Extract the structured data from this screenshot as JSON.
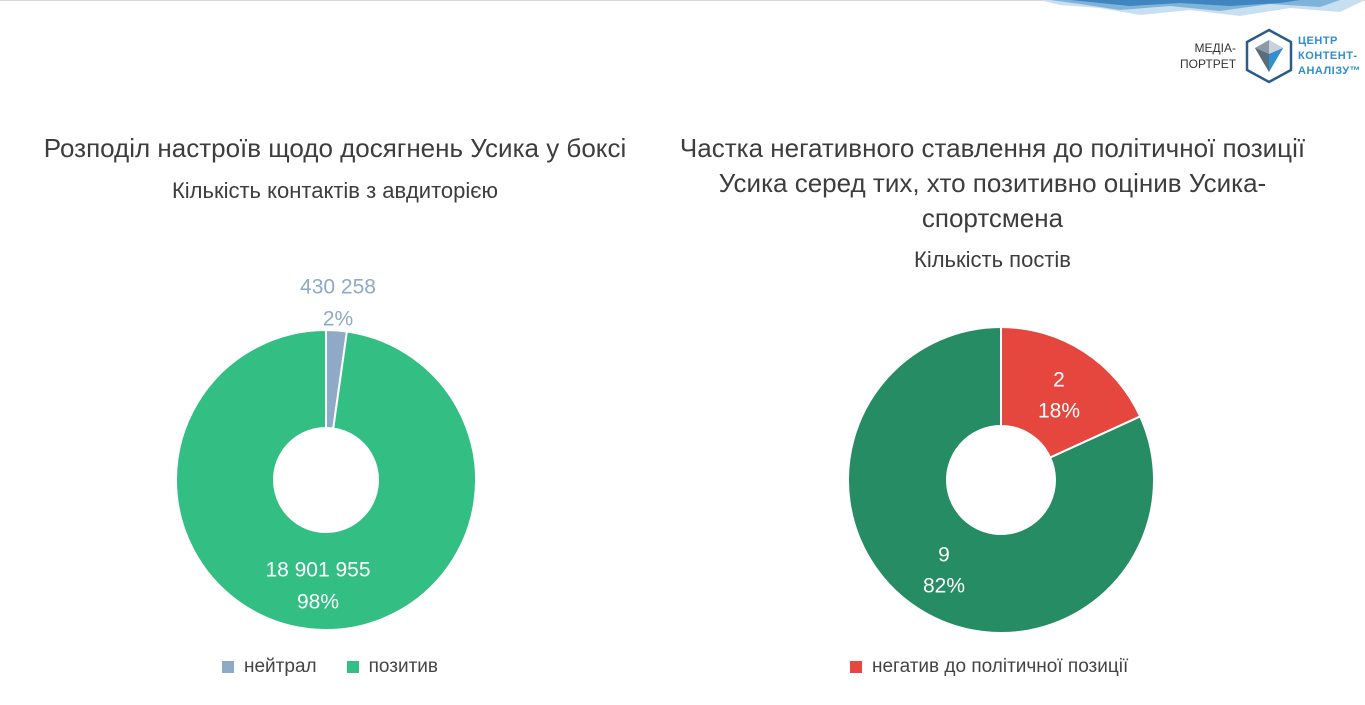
{
  "logo": {
    "left_text": [
      "МЕДІА-",
      "ПОРТРЕТ"
    ],
    "right_text": [
      "ЦЕНТР",
      "КОНТЕНТ-",
      "АНАЛІЗУ™"
    ]
  },
  "colors": {
    "neutral": "#8eaac6",
    "positive": "#33be84",
    "negative": "#e5473f",
    "positive_dark": "#258c63"
  },
  "chart_data": [
    {
      "type": "pie",
      "title": "Розподіл настроїв щодо досягнень Усика у боксі",
      "subtitle": "Кількість контактів з авдиторією",
      "slices": [
        {
          "label": "нейтрал",
          "value": 430258,
          "value_text": "430 258",
          "percent": "2%",
          "color": "#8eaac6"
        },
        {
          "label": "позитив",
          "value": 18901955,
          "value_text": "18 901 955",
          "percent": "98%",
          "color": "#33be84"
        }
      ],
      "legend": [
        "нейтрал",
        "позитив"
      ],
      "legend_position": "bottom"
    },
    {
      "type": "pie",
      "title": "Частка негативного ставлення до політичної позиції Усика серед тих, хто позитивно оцінив Усика-спортсмена",
      "title_lines": [
        "Частка негативного ставлення до політичної позиції",
        "Усика серед тих, хто позитивно оцінив Усика-",
        "спортсмена"
      ],
      "subtitle": "Кількість постів",
      "slices": [
        {
          "label": "негатив до політичної позиції",
          "value": 2,
          "value_text": "2",
          "percent": "18%",
          "color": "#e5473f"
        },
        {
          "label": "",
          "value": 9,
          "value_text": "9",
          "percent": "82%",
          "color": "#258c63"
        }
      ],
      "legend": [
        "негатив до політичної позиції"
      ],
      "legend_position": "bottom"
    }
  ]
}
